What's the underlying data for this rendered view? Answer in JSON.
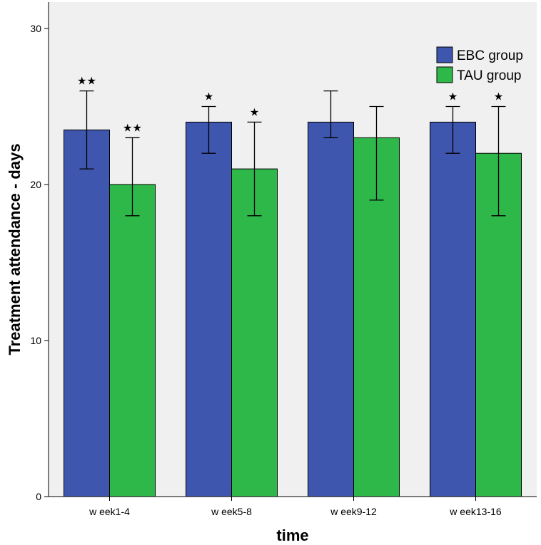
{
  "chart_data": {
    "type": "bar",
    "title": "",
    "xlabel": "time",
    "ylabel": "Treatment attendance - days",
    "ylim": [
      0,
      32
    ],
    "yticks": [
      0,
      10,
      20,
      30
    ],
    "ytick_labels": [
      "0",
      "10",
      "20",
      "30"
    ],
    "categories": [
      "w eek1-4",
      "w eek5-8",
      "w eek9-12",
      "w eek13-16"
    ],
    "legend_position": "top-right",
    "series": [
      {
        "name": "EBC group",
        "color": "#3f56ae",
        "values": [
          23.5,
          24,
          24,
          24
        ],
        "error_low": [
          21,
          22,
          23,
          22
        ],
        "error_high": [
          26,
          25,
          26,
          25
        ],
        "significance": [
          "★★",
          "★",
          "",
          "★"
        ]
      },
      {
        "name": "TAU group",
        "color": "#2eb84a",
        "values": [
          20,
          21,
          23,
          22
        ],
        "error_low": [
          18,
          18,
          19,
          18
        ],
        "error_high": [
          23,
          24,
          25,
          25
        ],
        "significance": [
          "★★",
          "★",
          "",
          "★"
        ]
      }
    ]
  }
}
